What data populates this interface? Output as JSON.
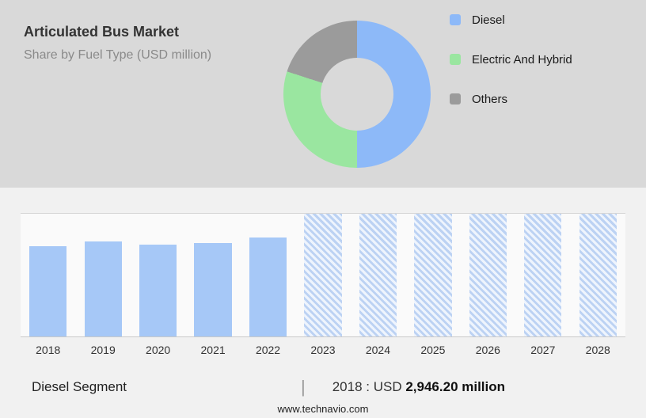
{
  "header": {
    "title": "Articulated Bus Market",
    "subtitle": "Share by Fuel Type (USD million)"
  },
  "legend": [
    {
      "label": "Diesel",
      "color": "#8db9f8"
    },
    {
      "label": "Electric And Hybrid",
      "color": "#9ae6a0"
    },
    {
      "label": "Others",
      "color": "#9b9b9b"
    }
  ],
  "chart_data": [
    {
      "type": "pie",
      "title": "Share by Fuel Type (USD million)",
      "donut": true,
      "legend_position": "right",
      "slices": [
        {
          "label": "Diesel",
          "value": 50,
          "color": "#8db9f8"
        },
        {
          "label": "Electric And Hybrid",
          "value": 30,
          "color": "#9ae6a0"
        },
        {
          "label": "Others",
          "value": 20,
          "color": "#9b9b9b"
        }
      ]
    },
    {
      "type": "bar",
      "title": "Diesel Segment (USD million)",
      "categories": [
        "2018",
        "2019",
        "2020",
        "2021",
        "2022",
        "2023",
        "2024",
        "2025",
        "2026",
        "2027",
        "2028"
      ],
      "series": [
        {
          "name": "Diesel segment market size",
          "values": [
            2946.2,
            3085,
            2995,
            3040,
            3230,
            null,
            null,
            null,
            null,
            null,
            null
          ]
        }
      ],
      "forecast_from": "2023",
      "forecast_style": "hatched",
      "ylim": [
        0,
        4000
      ],
      "grid": "top-and-bottom-only",
      "bar_color": "#a6c8f7",
      "hatch_bg": "#eef4fd",
      "hatch_stripe": "#bcd2f3"
    }
  ],
  "footer": {
    "segment_label": "Diesel Segment",
    "separator": "|",
    "year_label": "2018 : USD",
    "value_bold": "2,946.20 million",
    "website": "www.technavio.com"
  }
}
